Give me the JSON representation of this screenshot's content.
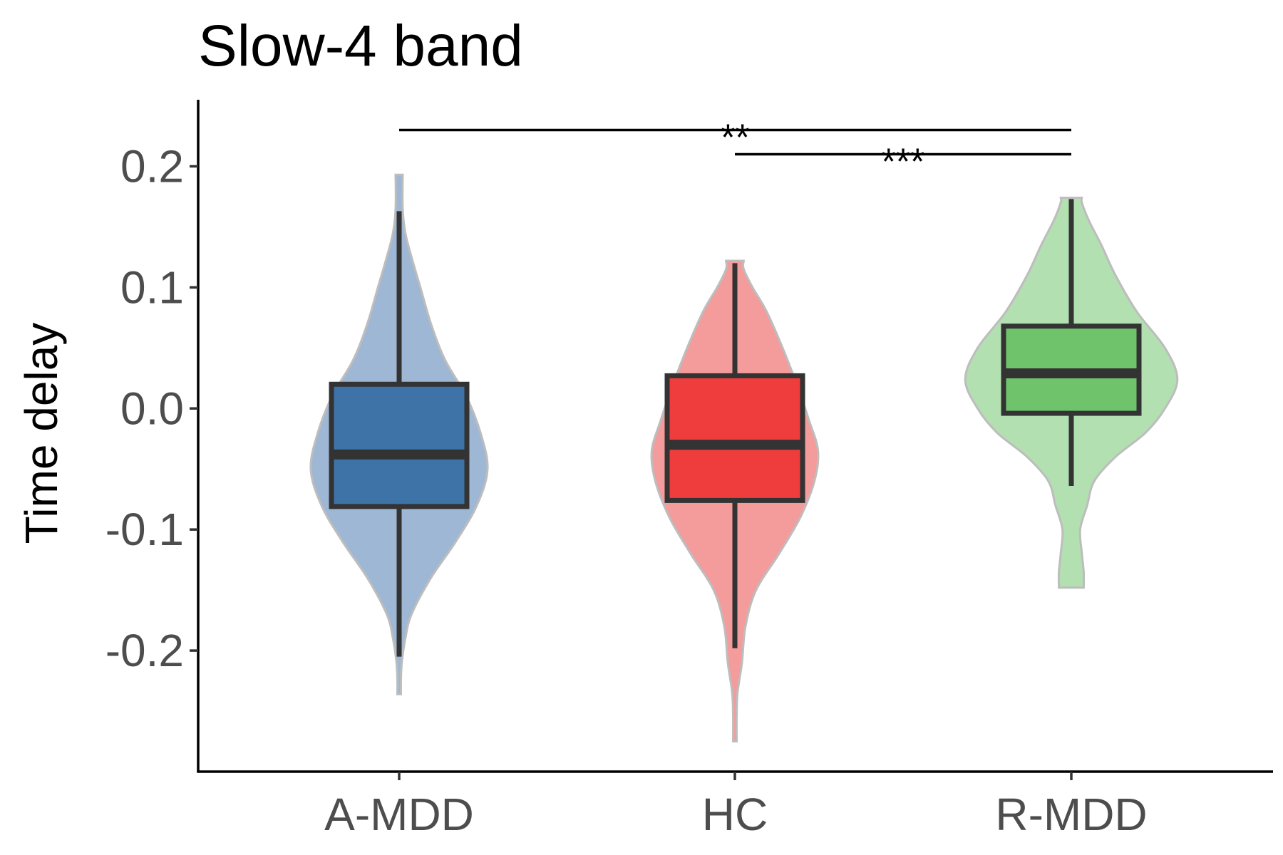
{
  "chart_data": {
    "type": "violin",
    "title": "Slow-4 band",
    "xlabel": "",
    "ylabel": "Time delay",
    "ylim": [
      -0.3,
      0.255
    ],
    "yticks": [
      -0.2,
      -0.1,
      0.0,
      0.1,
      0.2
    ],
    "ytick_labels": [
      "-0.2",
      "-0.1",
      "0.0",
      "0.1",
      "0.2"
    ],
    "categories": [
      "A-MDD",
      "HC",
      "R-MDD"
    ],
    "grid": false,
    "legend": "none",
    "groups": [
      {
        "category": "A-MDD",
        "fill": "#3e73a8",
        "violin_fill": "#9db7d4",
        "box": {
          "whisker_low": -0.205,
          "q1": -0.081,
          "median": -0.038,
          "q3": 0.02,
          "whisker_high": 0.163
        },
        "violin_range": [
          -0.236,
          0.193
        ],
        "density": [
          [
            -0.236,
            0.01
          ],
          [
            -0.225,
            0.01
          ],
          [
            -0.21,
            0.015
          ],
          [
            -0.19,
            0.035
          ],
          [
            -0.17,
            0.07
          ],
          [
            -0.14,
            0.18
          ],
          [
            -0.11,
            0.32
          ],
          [
            -0.08,
            0.44
          ],
          [
            -0.05,
            0.5
          ],
          [
            -0.02,
            0.46
          ],
          [
            0.01,
            0.38
          ],
          [
            0.04,
            0.26
          ],
          [
            0.07,
            0.18
          ],
          [
            0.1,
            0.12
          ],
          [
            0.125,
            0.07
          ],
          [
            0.145,
            0.035
          ],
          [
            0.165,
            0.02
          ],
          [
            0.193,
            0.02
          ]
        ]
      },
      {
        "category": "HC",
        "fill": "#ef3c3c",
        "violin_fill": "#f49b9b",
        "box": {
          "whisker_low": -0.198,
          "q1": -0.076,
          "median": -0.03,
          "q3": 0.027,
          "whisker_high": 0.12
        },
        "violin_range": [
          -0.275,
          0.122
        ],
        "density": [
          [
            -0.275,
            0.01
          ],
          [
            -0.255,
            0.01
          ],
          [
            -0.235,
            0.015
          ],
          [
            -0.21,
            0.04
          ],
          [
            -0.18,
            0.06
          ],
          [
            -0.15,
            0.12
          ],
          [
            -0.12,
            0.25
          ],
          [
            -0.09,
            0.37
          ],
          [
            -0.06,
            0.45
          ],
          [
            -0.035,
            0.47
          ],
          [
            -0.01,
            0.42
          ],
          [
            0.02,
            0.35
          ],
          [
            0.05,
            0.27
          ],
          [
            0.08,
            0.18
          ],
          [
            0.1,
            0.1
          ],
          [
            0.115,
            0.05
          ],
          [
            0.122,
            0.05
          ]
        ]
      },
      {
        "category": "R-MDD",
        "fill": "#6fc46b",
        "violin_fill": "#b2e0b0",
        "box": {
          "whisker_low": -0.064,
          "q1": -0.004,
          "median": 0.029,
          "q3": 0.068,
          "whisker_high": 0.173
        },
        "violin_range": [
          -0.148,
          0.174
        ],
        "density": [
          [
            -0.148,
            0.07
          ],
          [
            -0.135,
            0.07
          ],
          [
            -0.12,
            0.06
          ],
          [
            -0.1,
            0.05
          ],
          [
            -0.08,
            0.09
          ],
          [
            -0.06,
            0.13
          ],
          [
            -0.04,
            0.25
          ],
          [
            -0.02,
            0.42
          ],
          [
            0.0,
            0.53
          ],
          [
            0.024,
            0.6
          ],
          [
            0.05,
            0.53
          ],
          [
            0.08,
            0.37
          ],
          [
            0.11,
            0.25
          ],
          [
            0.135,
            0.17
          ],
          [
            0.155,
            0.1
          ],
          [
            0.17,
            0.06
          ],
          [
            0.174,
            0.06
          ]
        ]
      }
    ],
    "significance": [
      {
        "from": "A-MDD",
        "to": "R-MDD",
        "y": 0.23,
        "label": "**"
      },
      {
        "from": "HC",
        "to": "R-MDD",
        "y": 0.21,
        "label": "***"
      }
    ]
  }
}
